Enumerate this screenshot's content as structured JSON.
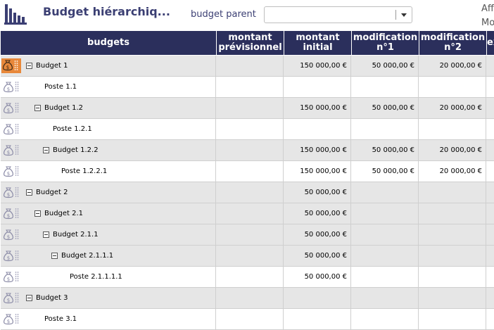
{
  "header": {
    "title": "Budget hiérarchiq...",
    "parent_label": "budget parent",
    "parent_value": "",
    "cut_right_1": "Aff",
    "cut_right_2": "Mo"
  },
  "columns": [
    {
      "key": "budgets",
      "label": "budgets"
    },
    {
      "key": "prev",
      "label_1": "montant",
      "label_2": "prévisionnel"
    },
    {
      "key": "init",
      "label_1": "montant",
      "label_2": "initial"
    },
    {
      "key": "m1",
      "label_1": "modification",
      "label_2": "n°1"
    },
    {
      "key": "m2",
      "label_1": "modification",
      "label_2": "n°2"
    },
    {
      "key": "ex",
      "label": "ex"
    }
  ],
  "rows": [
    {
      "label": "Budget 1",
      "level": 0,
      "type": "budget",
      "prev": "",
      "init": "150 000,00 €",
      "m1": "50 000,00 €",
      "m2": "20 000,00 €",
      "active": true
    },
    {
      "label": "Poste 1.1",
      "level": 1,
      "type": "poste",
      "prev": "",
      "init": "",
      "m1": "",
      "m2": ""
    },
    {
      "label": "Budget 1.2",
      "level": 1,
      "type": "budget",
      "prev": "",
      "init": "150 000,00 €",
      "m1": "50 000,00 €",
      "m2": "20 000,00 €"
    },
    {
      "label": "Poste 1.2.1",
      "level": 2,
      "type": "poste",
      "prev": "",
      "init": "",
      "m1": "",
      "m2": ""
    },
    {
      "label": "Budget 1.2.2",
      "level": 2,
      "type": "budget",
      "prev": "",
      "init": "150 000,00 €",
      "m1": "50 000,00 €",
      "m2": "20 000,00 €"
    },
    {
      "label": "Poste 1.2.2.1",
      "level": 3,
      "type": "poste",
      "prev": "",
      "init": "150 000,00 €",
      "m1": "50 000,00 €",
      "m2": "20 000,00 €"
    },
    {
      "label": "Budget 2",
      "level": 0,
      "type": "budget",
      "prev": "",
      "init": "50 000,00 €",
      "m1": "",
      "m2": ""
    },
    {
      "label": "Budget 2.1",
      "level": 1,
      "type": "budget",
      "prev": "",
      "init": "50 000,00 €",
      "m1": "",
      "m2": ""
    },
    {
      "label": "Budget 2.1.1",
      "level": 2,
      "type": "budget",
      "prev": "",
      "init": "50 000,00 €",
      "m1": "",
      "m2": ""
    },
    {
      "label": "Budget 2.1.1.1",
      "level": 3,
      "type": "budget",
      "prev": "",
      "init": "50 000,00 €",
      "m1": "",
      "m2": ""
    },
    {
      "label": "Poste 2.1.1.1.1",
      "level": 4,
      "type": "poste",
      "prev": "",
      "init": "50 000,00 €",
      "m1": "",
      "m2": ""
    },
    {
      "label": "Budget 3",
      "level": 0,
      "type": "budget",
      "prev": "",
      "init": "",
      "m1": "",
      "m2": ""
    },
    {
      "label": "Poste 3.1",
      "level": 1,
      "type": "poste",
      "prev": "",
      "init": "",
      "m1": "",
      "m2": ""
    }
  ],
  "icons": {
    "app": "bar-chart-icon",
    "row": "money-bag-icon",
    "drag": "drag-handle-icon",
    "toggle": "collapse-icon"
  },
  "colors": {
    "header_bg": "#2b2f5c",
    "title": "#3b3f73",
    "row_alt": "#e6e6e6",
    "active_icon_bg": "#e8883a"
  }
}
